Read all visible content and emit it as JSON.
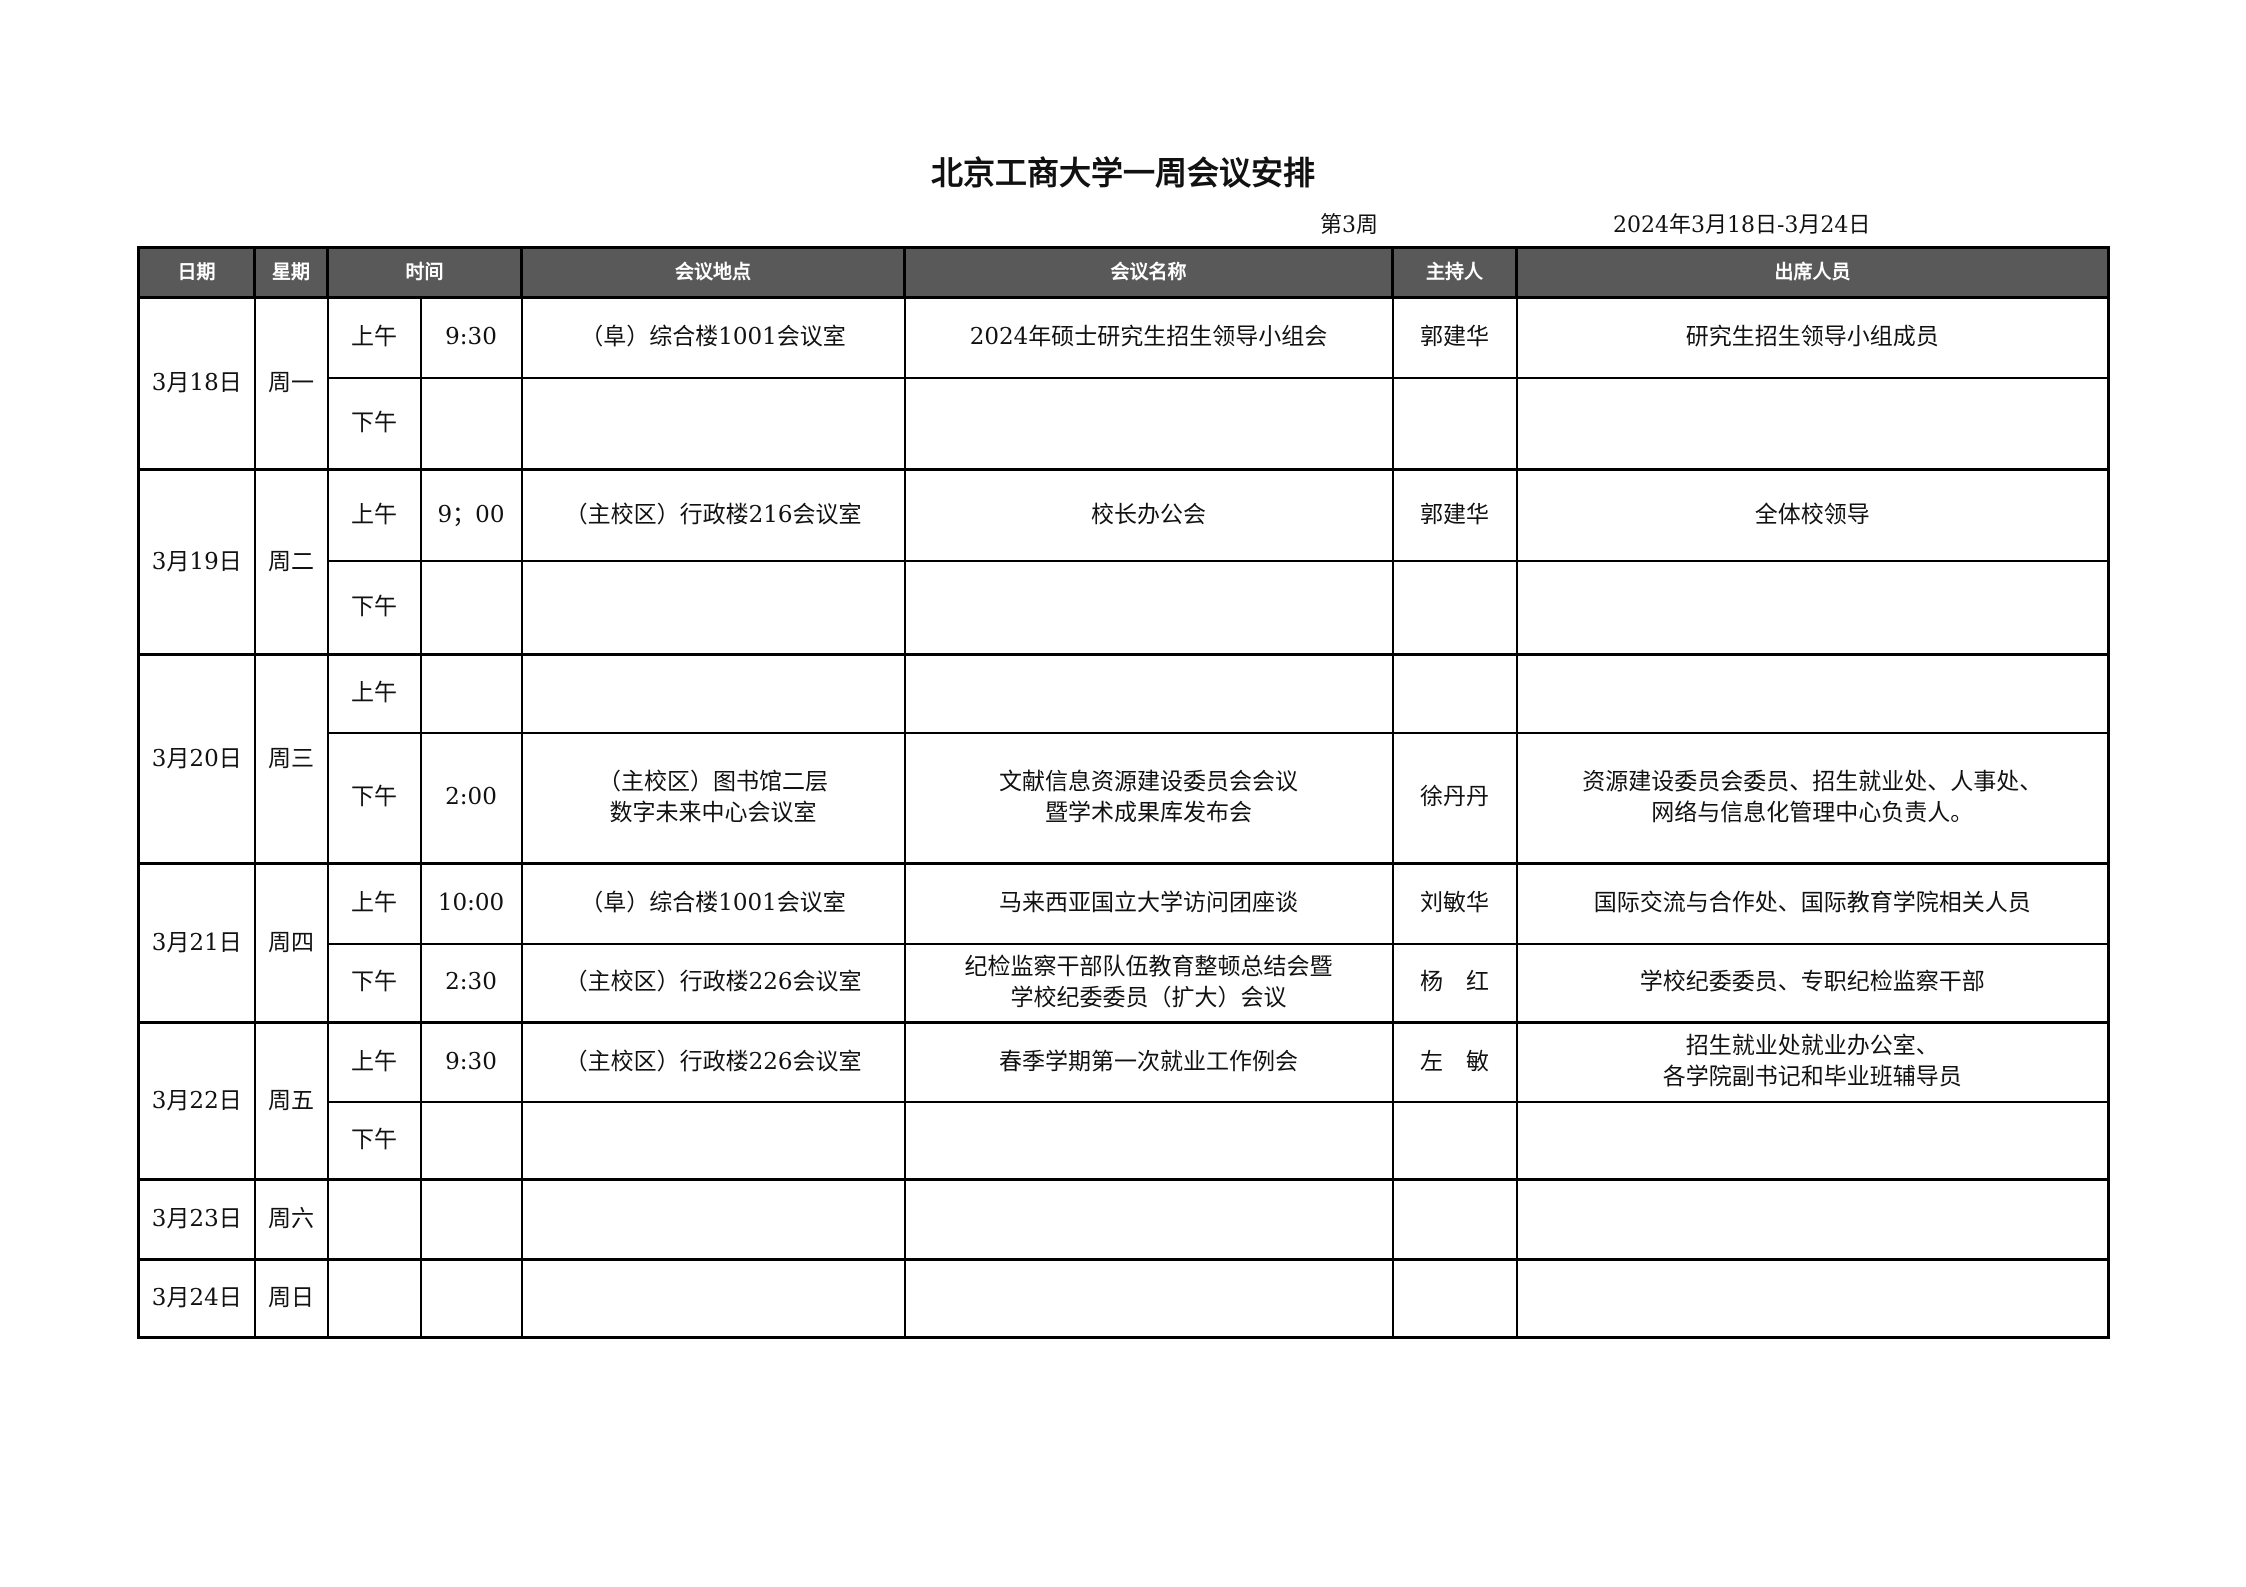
{
  "title": "北京工商大学一周会议安排",
  "week": "第3周",
  "date_range": "2024年3月18日-3月24日",
  "header_color": "#595959",
  "columns": [
    "日期",
    "星期",
    "时间",
    "会议地点",
    "会议名称",
    "主持人",
    "出席人员"
  ],
  "days": [
    {
      "date": "3月18日",
      "weekday": "周一",
      "slots": [
        {
          "period": "上午",
          "time": "9:30",
          "location": "（阜）综合楼1001会议室",
          "meeting": "2024年硕士研究生招生领导小组会",
          "host": "郭建华",
          "attendees": "研究生招生领导小组成员"
        },
        {
          "period": "下午",
          "time": "",
          "location": "",
          "meeting": "",
          "host": "",
          "attendees": ""
        }
      ]
    },
    {
      "date": "3月19日",
      "weekday": "周二",
      "slots": [
        {
          "period": "上午",
          "time": "9；00",
          "location": "（主校区）行政楼216会议室",
          "meeting": "校长办公会",
          "host": "郭建华",
          "attendees": "全体校领导"
        },
        {
          "period": "下午",
          "time": "",
          "location": "",
          "meeting": "",
          "host": "",
          "attendees": ""
        }
      ]
    },
    {
      "date": "3月20日",
      "weekday": "周三",
      "slots": [
        {
          "period": "上午",
          "time": "",
          "location": "",
          "meeting": "",
          "host": "",
          "attendees": ""
        },
        {
          "period": "下午",
          "time": "2:00",
          "location": "（主校区）图书馆二层\n数字未来中心会议室",
          "meeting": "文献信息资源建设委员会会议\n暨学术成果库发布会",
          "host": "徐丹丹",
          "attendees": "资源建设委员会委员、招生就业处、人事处、\n网络与信息化管理中心负责人。"
        }
      ]
    },
    {
      "date": "3月21日",
      "weekday": "周四",
      "slots": [
        {
          "period": "上午",
          "time": "10:00",
          "location": "（阜）综合楼1001会议室",
          "meeting": "马来西亚国立大学访问团座谈",
          "host": "刘敏华",
          "attendees": "国际交流与合作处、国际教育学院相关人员"
        },
        {
          "period": "下午",
          "time": "2:30",
          "location": "（主校区）行政楼226会议室",
          "meeting": "纪检监察干部队伍教育整顿总结会暨\n学校纪委委员（扩大）会议",
          "host": "杨　红",
          "attendees": "学校纪委委员、专职纪检监察干部"
        }
      ]
    },
    {
      "date": "3月22日",
      "weekday": "周五",
      "slots": [
        {
          "period": "上午",
          "time": "9:30",
          "location": "（主校区）行政楼226会议室",
          "meeting": "春季学期第一次就业工作例会",
          "host": "左　敏",
          "attendees": "招生就业处就业办公室、\n各学院副书记和毕业班辅导员"
        },
        {
          "period": "下午",
          "time": "",
          "location": "",
          "meeting": "",
          "host": "",
          "attendees": ""
        }
      ]
    },
    {
      "date": "3月23日",
      "weekday": "周六",
      "slots": [
        {
          "period": "",
          "time": "",
          "location": "",
          "meeting": "",
          "host": "",
          "attendees": ""
        }
      ]
    },
    {
      "date": "3月24日",
      "weekday": "周日",
      "slots": [
        {
          "period": "",
          "time": "",
          "location": "",
          "meeting": "",
          "host": "",
          "attendees": ""
        }
      ]
    }
  ]
}
